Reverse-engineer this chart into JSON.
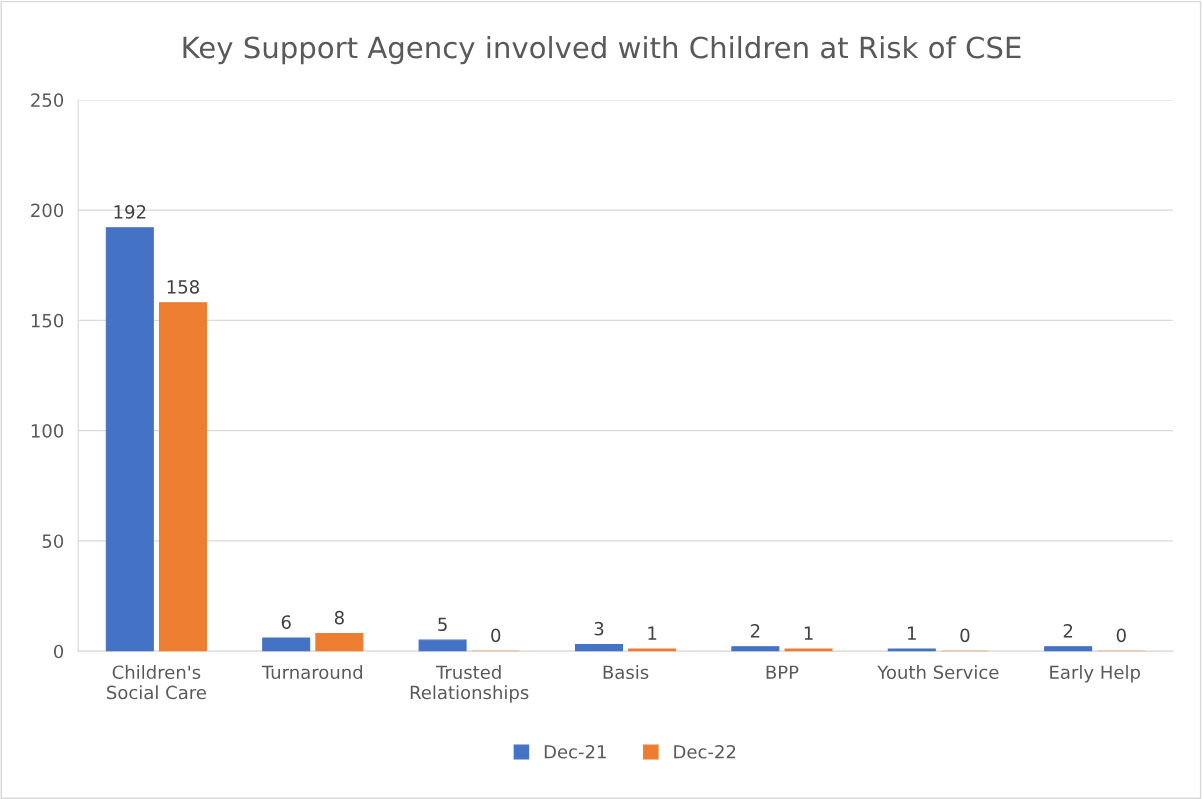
{
  "chart_data": {
    "type": "bar",
    "title": "Key Support Agency involved with Children at Risk of CSE",
    "categories": [
      "Children's\nSocial Care",
      "Turnaround",
      "Trusted\nRelationships",
      "Basis",
      "BPP",
      "Youth Service",
      "Early Help"
    ],
    "series": [
      {
        "name": "Dec-21",
        "color": "#4472c4",
        "values": [
          192,
          6,
          5,
          3,
          2,
          1,
          2
        ]
      },
      {
        "name": "Dec-22",
        "color": "#ed7d31",
        "values": [
          158,
          8,
          0,
          1,
          1,
          0,
          0
        ]
      }
    ],
    "ylim": [
      0,
      250
    ],
    "yticks": [
      0,
      50,
      100,
      150,
      200,
      250
    ],
    "grid": "y",
    "legend": "bottom",
    "data_labels": true
  }
}
